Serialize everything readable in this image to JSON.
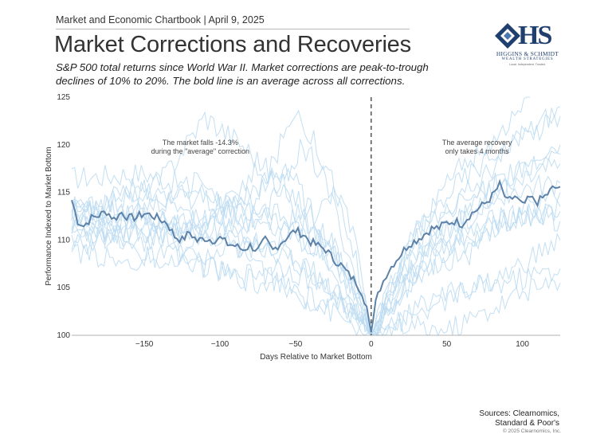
{
  "header": {
    "chartbook": "Market and Economic Chartbook | April 9, 2025",
    "title": "Market Corrections and Recoveries",
    "subtitle": "S&P 500 total returns since World War II. Market corrections are peak-to-trough declines of 10% to 20%. The bold line is an average across all corrections."
  },
  "logo": {
    "monogram": "HS",
    "name": "HIGGINS & SCHMIDT",
    "subname": "WEALTH STRATEGIES",
    "tagline": "Local. Independent. Trusted.",
    "color": "#1f3f6e"
  },
  "chart_data": {
    "type": "line",
    "xlabel": "Days Relative to Market Bottom",
    "ylabel": "Performance Indexed to Market Bottom",
    "xlim": [
      -198,
      125
    ],
    "ylim": [
      100,
      125
    ],
    "x_ticks": [
      -150,
      -100,
      -50,
      0,
      50,
      100
    ],
    "x_tick_labels": [
      "−150",
      "−100",
      "−50",
      "0",
      "50",
      "100"
    ],
    "y_ticks": [
      100,
      105,
      110,
      115,
      120,
      125
    ],
    "y_tick_labels": [
      "100",
      "105",
      "110",
      "115",
      "120",
      "125"
    ],
    "zero_line": {
      "x": 0,
      "style": "dashed",
      "color": "#555555"
    },
    "average_series": {
      "name": "Average across all corrections",
      "color": "#5d82a8",
      "points": [
        [
          -198,
          114.2
        ],
        [
          -194,
          112.0
        ],
        [
          -190,
          111.5
        ],
        [
          -185,
          112.3
        ],
        [
          -180,
          112.6
        ],
        [
          -175,
          113.0
        ],
        [
          -170,
          112.2
        ],
        [
          -165,
          112.9
        ],
        [
          -160,
          112.3
        ],
        [
          -155,
          112.4
        ],
        [
          -150,
          112.8
        ],
        [
          -145,
          112.6
        ],
        [
          -140,
          112.2
        ],
        [
          -135,
          111.8
        ],
        [
          -130,
          110.4
        ],
        [
          -125,
          110.0
        ],
        [
          -120,
          110.8
        ],
        [
          -115,
          109.9
        ],
        [
          -110,
          110.2
        ],
        [
          -105,
          110.0
        ],
        [
          -100,
          110.2
        ],
        [
          -95,
          109.6
        ],
        [
          -90,
          109.4
        ],
        [
          -85,
          109.0
        ],
        [
          -80,
          109.4
        ],
        [
          -75,
          108.9
        ],
        [
          -70,
          110.0
        ],
        [
          -65,
          108.9
        ],
        [
          -60,
          109.7
        ],
        [
          -55,
          110.4
        ],
        [
          -50,
          111.0
        ],
        [
          -45,
          110.6
        ],
        [
          -40,
          109.8
        ],
        [
          -35,
          109.4
        ],
        [
          -30,
          109.0
        ],
        [
          -25,
          108.0
        ],
        [
          -20,
          107.4
        ],
        [
          -15,
          106.4
        ],
        [
          -10,
          105.6
        ],
        [
          -6,
          104.5
        ],
        [
          -3,
          103.0
        ],
        [
          0,
          100.3
        ],
        [
          3,
          103.4
        ],
        [
          6,
          105.0
        ],
        [
          10,
          106.4
        ],
        [
          15,
          107.6
        ],
        [
          20,
          108.6
        ],
        [
          25,
          109.6
        ],
        [
          30,
          110.0
        ],
        [
          35,
          110.6
        ],
        [
          40,
          111.2
        ],
        [
          45,
          111.3
        ],
        [
          50,
          111.8
        ],
        [
          55,
          112.0
        ],
        [
          60,
          111.7
        ],
        [
          65,
          112.6
        ],
        [
          70,
          113.2
        ],
        [
          75,
          113.8
        ],
        [
          80,
          114.6
        ],
        [
          85,
          115.8
        ],
        [
          90,
          114.0
        ],
        [
          95,
          114.6
        ],
        [
          100,
          113.6
        ],
        [
          105,
          114.4
        ],
        [
          110,
          114.0
        ],
        [
          115,
          114.6
        ],
        [
          120,
          115.4
        ],
        [
          125,
          115.6
        ]
      ]
    },
    "individual_series_note": "Faint light-blue lines are individual S&P 500 correction paths; all converge at 100 on day 0.",
    "individual_series_color": "#bcdcf2",
    "individual_series": [
      {
        "points": [
          [
            -198,
            116.5
          ],
          [
            -150,
            117.0
          ],
          [
            -100,
            114.5
          ],
          [
            -50,
            112.0
          ],
          [
            -20,
            108.0
          ],
          [
            0,
            100
          ],
          [
            30,
            109.0
          ],
          [
            60,
            112.0
          ],
          [
            100,
            116.0
          ],
          [
            125,
            118.0
          ]
        ]
      },
      {
        "points": [
          [
            -198,
            110.0
          ],
          [
            -150,
            113.0
          ],
          [
            -120,
            108.0
          ],
          [
            -90,
            106.0
          ],
          [
            -60,
            107.5
          ],
          [
            -30,
            105.0
          ],
          [
            0,
            100
          ],
          [
            25,
            106.0
          ],
          [
            50,
            109.5
          ],
          [
            80,
            112.0
          ],
          [
            125,
            113.0
          ]
        ]
      },
      {
        "points": [
          [
            -198,
            111.5
          ],
          [
            -170,
            114.0
          ],
          [
            -140,
            116.0
          ],
          [
            -110,
            123.0
          ],
          [
            -85,
            120.0
          ],
          [
            -60,
            116.0
          ],
          [
            -30,
            111.0
          ],
          [
            0,
            100
          ],
          [
            30,
            110.0
          ],
          [
            70,
            116.0
          ],
          [
            100,
            121.0
          ],
          [
            125,
            124.0
          ]
        ]
      },
      {
        "points": [
          [
            -198,
            114.0
          ],
          [
            -160,
            109.0
          ],
          [
            -130,
            107.0
          ],
          [
            -100,
            108.5
          ],
          [
            -70,
            110.0
          ],
          [
            -40,
            107.0
          ],
          [
            -15,
            103.0
          ],
          [
            0,
            100
          ],
          [
            25,
            102.5
          ],
          [
            55,
            104.5
          ],
          [
            85,
            106.0
          ],
          [
            125,
            110.0
          ]
        ]
      },
      {
        "points": [
          [
            -198,
            108.0
          ],
          [
            -170,
            111.0
          ],
          [
            -140,
            112.5
          ],
          [
            -110,
            110.0
          ],
          [
            -80,
            112.0
          ],
          [
            -50,
            124.0
          ],
          [
            -30,
            118.0
          ],
          [
            -10,
            110.0
          ],
          [
            0,
            100
          ],
          [
            20,
            108.0
          ],
          [
            50,
            115.0
          ],
          [
            80,
            119.0
          ],
          [
            125,
            123.0
          ]
        ]
      },
      {
        "points": [
          [
            -198,
            112.0
          ],
          [
            -160,
            115.5
          ],
          [
            -130,
            113.5
          ],
          [
            -100,
            111.0
          ],
          [
            -70,
            106.5
          ],
          [
            -45,
            104.0
          ],
          [
            -20,
            103.0
          ],
          [
            0,
            100
          ],
          [
            20,
            101.5
          ],
          [
            45,
            103.5
          ],
          [
            70,
            105.0
          ],
          [
            100,
            106.0
          ],
          [
            125,
            107.0
          ]
        ]
      },
      {
        "points": [
          [
            -198,
            113.5
          ],
          [
            -160,
            112.0
          ],
          [
            -120,
            110.5
          ],
          [
            -80,
            115.0
          ],
          [
            -55,
            117.5
          ],
          [
            -40,
            113.0
          ],
          [
            -20,
            108.0
          ],
          [
            0,
            100
          ],
          [
            20,
            107.0
          ],
          [
            50,
            111.0
          ],
          [
            85,
            115.0
          ],
          [
            125,
            116.0
          ]
        ]
      },
      {
        "points": [
          [
            -198,
            111.0
          ],
          [
            -150,
            110.0
          ],
          [
            -110,
            112.5
          ],
          [
            -70,
            113.0
          ],
          [
            -45,
            120.0
          ],
          [
            -30,
            116.0
          ],
          [
            -12,
            107.0
          ],
          [
            0,
            100
          ],
          [
            15,
            105.0
          ],
          [
            40,
            109.0
          ],
          [
            75,
            111.0
          ],
          [
            110,
            113.0
          ],
          [
            125,
            112.0
          ]
        ]
      },
      {
        "points": [
          [
            -198,
            112.5
          ],
          [
            -165,
            114.5
          ],
          [
            -135,
            115.0
          ],
          [
            -105,
            114.0
          ],
          [
            -75,
            111.5
          ],
          [
            -50,
            111.0
          ],
          [
            -30,
            108.5
          ],
          [
            0,
            100
          ],
          [
            15,
            106.0
          ],
          [
            35,
            112.0
          ],
          [
            60,
            118.0
          ],
          [
            85,
            121.0
          ],
          [
            105,
            125.0
          ]
        ]
      },
      {
        "points": [
          [
            -198,
            109.5
          ],
          [
            -165,
            107.5
          ],
          [
            -135,
            108.5
          ],
          [
            -105,
            107.0
          ],
          [
            -75,
            105.5
          ],
          [
            -50,
            104.5
          ],
          [
            -25,
            102.5
          ],
          [
            0,
            100
          ],
          [
            25,
            101.0
          ],
          [
            50,
            100.5
          ],
          [
            75,
            102.5
          ],
          [
            100,
            104.5
          ],
          [
            125,
            105.5
          ]
        ]
      },
      {
        "points": [
          [
            -198,
            113.0
          ],
          [
            -170,
            112.0
          ],
          [
            -140,
            114.0
          ],
          [
            -115,
            116.0
          ],
          [
            -90,
            113.0
          ],
          [
            -65,
            112.0
          ],
          [
            -40,
            109.5
          ],
          [
            -18,
            104.0
          ],
          [
            0,
            100
          ],
          [
            30,
            111.0
          ],
          [
            60,
            114.0
          ],
          [
            90,
            116.5
          ],
          [
            125,
            119.0
          ]
        ]
      },
      {
        "points": [
          [
            -198,
            114.5
          ],
          [
            -175,
            113.0
          ],
          [
            -145,
            112.0
          ],
          [
            -115,
            111.0
          ],
          [
            -85,
            109.0
          ],
          [
            -60,
            110.0
          ],
          [
            -40,
            112.0
          ],
          [
            -25,
            115.0
          ],
          [
            -10,
            108.0
          ],
          [
            0,
            100
          ],
          [
            20,
            104.5
          ],
          [
            45,
            108.0
          ],
          [
            70,
            110.5
          ],
          [
            125,
            115.0
          ]
        ]
      },
      {
        "points": [
          [
            -198,
            110.5
          ],
          [
            -160,
            111.0
          ],
          [
            -120,
            109.5
          ],
          [
            -95,
            113.0
          ],
          [
            -75,
            118.0
          ],
          [
            -60,
            115.0
          ],
          [
            -35,
            110.0
          ],
          [
            -15,
            106.0
          ],
          [
            0,
            100
          ],
          [
            15,
            103.5
          ],
          [
            40,
            107.5
          ],
          [
            65,
            108.5
          ],
          [
            90,
            112.0
          ],
          [
            125,
            113.5
          ]
        ]
      },
      {
        "points": [
          [
            -198,
            112.0
          ],
          [
            -170,
            110.5
          ],
          [
            -140,
            111.0
          ],
          [
            -110,
            112.5
          ],
          [
            -80,
            110.0
          ],
          [
            -55,
            108.0
          ],
          [
            -35,
            106.0
          ],
          [
            -15,
            104.0
          ],
          [
            0,
            100
          ],
          [
            20,
            105.0
          ],
          [
            45,
            110.0
          ],
          [
            70,
            114.0
          ],
          [
            100,
            118.0
          ],
          [
            125,
            120.0
          ]
        ]
      }
    ],
    "annotations": [
      {
        "lines": [
          "The market falls -14.3%",
          "during the \"average\" correction"
        ],
        "x": -113,
        "y": 120.0
      },
      {
        "lines": [
          "The average recovery",
          "only takes 4 months"
        ],
        "x": 70,
        "y": 120.0
      }
    ]
  },
  "footer": {
    "sources_line1": "Sources: Clearnomics,",
    "sources_line2": "Standard & Poor's",
    "copyright": "© 2025 Clearnomics, Inc."
  }
}
